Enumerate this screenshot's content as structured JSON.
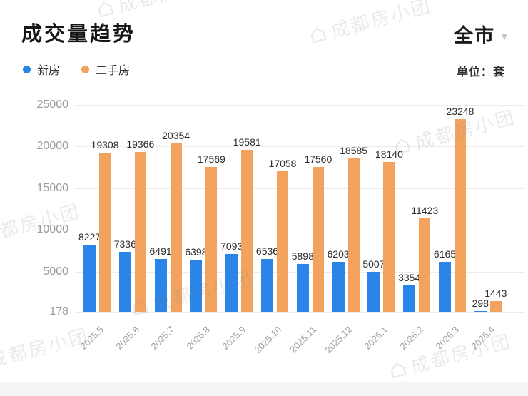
{
  "header": {
    "title": "成交量趋势",
    "city_filter": "全市",
    "unit_label": "单位：套"
  },
  "icons": {
    "chevron_down": "▼"
  },
  "watermark": {
    "text": "成都房小团"
  },
  "chart_data": {
    "type": "bar",
    "title": "成交量趋势",
    "unit": "套",
    "legend_position": "top-left",
    "grid": true,
    "value_labels": true,
    "categories": [
      "2025.5",
      "2025.6",
      "2025.7",
      "2025.8",
      "2025.9",
      "2025.10",
      "2025.11",
      "2025.12",
      "2026.1",
      "2026.2",
      "2026.3",
      "2026.4"
    ],
    "series": [
      {
        "name": "新房",
        "color": "#2b84e8",
        "values": [
          8227,
          7336,
          6491,
          6398,
          7093,
          6536,
          5898,
          6203,
          5007,
          3354,
          6165,
          298
        ]
      },
      {
        "name": "二手房",
        "color": "#f4a35e",
        "values": [
          19308,
          19366,
          20354,
          17569,
          19581,
          17058,
          17560,
          18585,
          18140,
          11423,
          23248,
          1443
        ]
      }
    ],
    "y_axis": {
      "min": 178,
      "max": 25000,
      "ticks": [
        178,
        5000,
        10000,
        15000,
        20000,
        25000
      ]
    }
  }
}
